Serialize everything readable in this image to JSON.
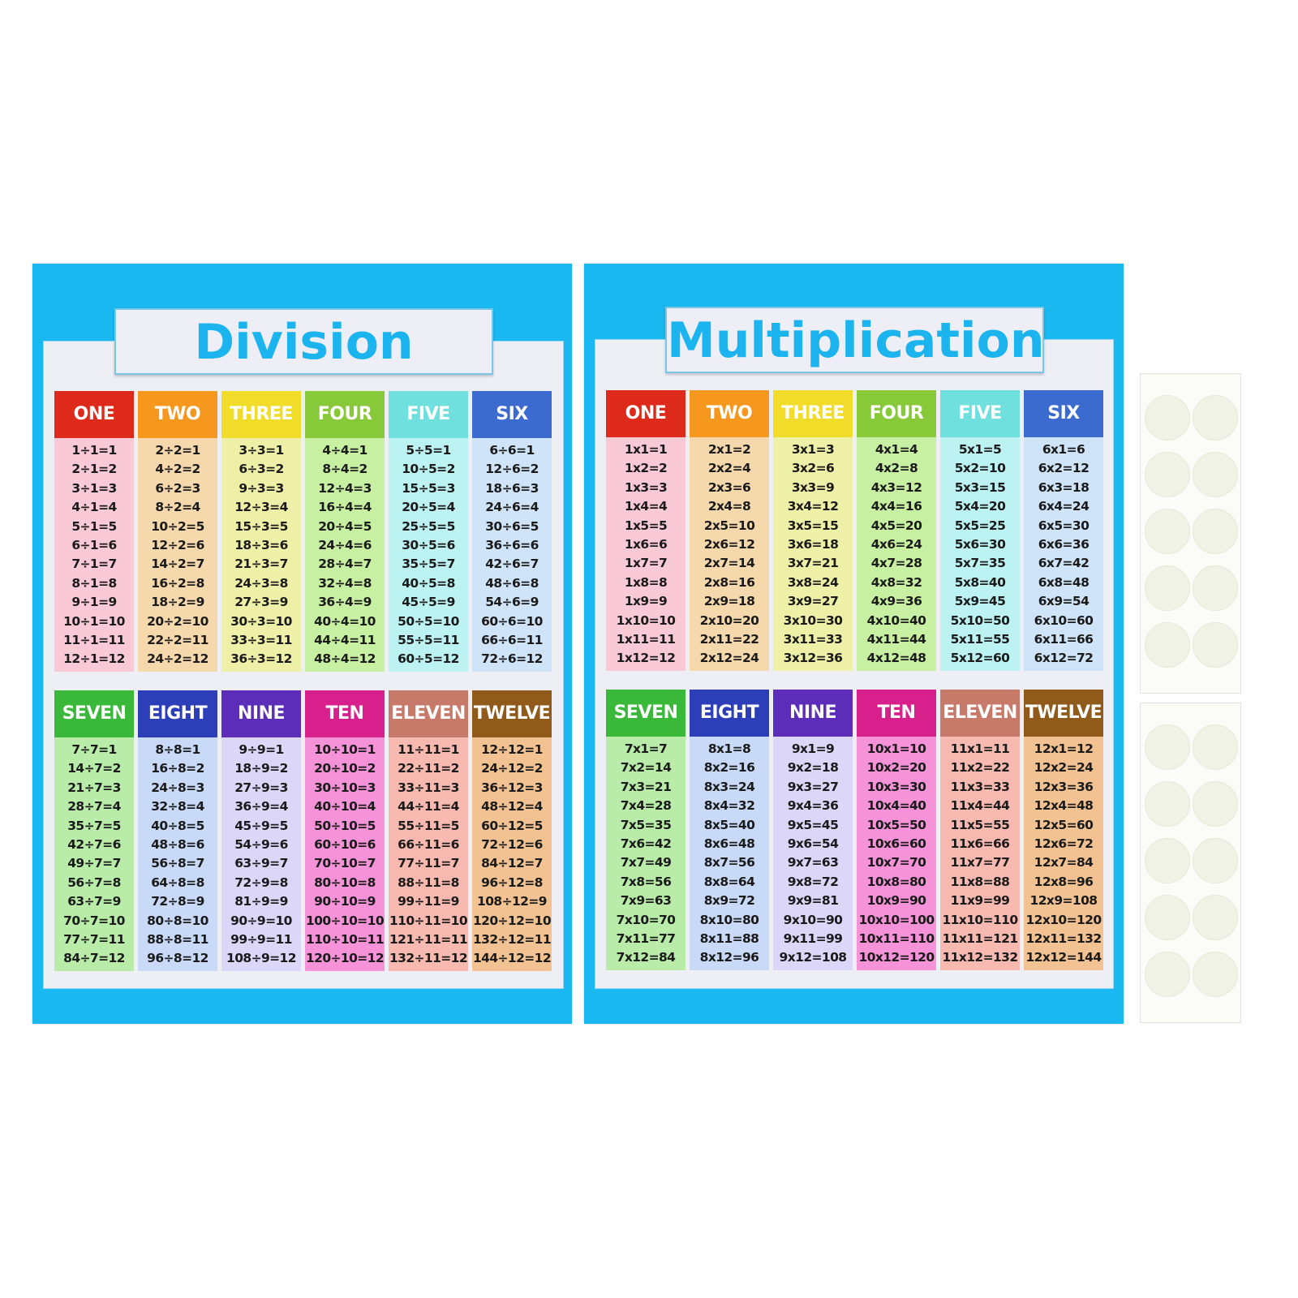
{
  "division": {
    "title": "Division",
    "columns": [
      {
        "label": "ONE",
        "head_color": "#dd2a1a",
        "body_color": "#f9c9d6",
        "eqs": [
          "1÷1=1",
          "2÷1=2",
          "3÷1=3",
          "4÷1=4",
          "5÷1=5",
          "6÷1=6",
          "7÷1=7",
          "8÷1=8",
          "9÷1=9",
          "10÷1=10",
          "11÷1=11",
          "12÷1=12"
        ]
      },
      {
        "label": "TWO",
        "head_color": "#f7981e",
        "body_color": "#f5d8ac",
        "eqs": [
          "2÷2=1",
          "4÷2=2",
          "6÷2=3",
          "8÷2=4",
          "10÷2=5",
          "12÷2=6",
          "14÷2=7",
          "16÷2=8",
          "18÷2=9",
          "20÷2=10",
          "22÷2=11",
          "24÷2=12"
        ]
      },
      {
        "label": "THREE",
        "head_color": "#f2dc2a",
        "body_color": "#eef0a8",
        "eqs": [
          "3÷3=1",
          "6÷3=2",
          "9÷3=3",
          "12÷3=4",
          "15÷3=5",
          "18÷3=6",
          "21÷3=7",
          "24÷3=8",
          "27÷3=9",
          "30÷3=10",
          "33÷3=11",
          "36÷3=12"
        ]
      },
      {
        "label": "FOUR",
        "head_color": "#88c93a",
        "body_color": "#c8f0a2",
        "eqs": [
          "4÷4=1",
          "8÷4=2",
          "12÷4=3",
          "16÷4=4",
          "20÷4=5",
          "24÷4=6",
          "28÷4=7",
          "32÷4=8",
          "36÷4=9",
          "40÷4=10",
          "44÷4=11",
          "48÷4=12"
        ]
      },
      {
        "label": "FIVE",
        "head_color": "#6fe0de",
        "body_color": "#bdf2f2",
        "eqs": [
          "5÷5=1",
          "10÷5=2",
          "15÷5=3",
          "20÷5=4",
          "25÷5=5",
          "30÷5=6",
          "35÷5=7",
          "40÷5=8",
          "45÷5=9",
          "50÷5=10",
          "55÷5=11",
          "60÷5=12"
        ]
      },
      {
        "label": "SIX",
        "head_color": "#3c6bd0",
        "body_color": "#cfe4f8",
        "eqs": [
          "6÷6=1",
          "12÷6=2",
          "18÷6=3",
          "24÷6=4",
          "30÷6=5",
          "36÷6=6",
          "42÷6=7",
          "48÷6=8",
          "54÷6=9",
          "60÷6=10",
          "66÷6=11",
          "72÷6=12"
        ]
      },
      {
        "label": "SEVEN",
        "head_color": "#3ab83a",
        "body_color": "#b8eca8",
        "eqs": [
          "7÷7=1",
          "14÷7=2",
          "21÷7=3",
          "28÷7=4",
          "35÷7=5",
          "42÷7=6",
          "49÷7=7",
          "56÷7=8",
          "63÷7=9",
          "70÷7=10",
          "77÷7=11",
          "84÷7=12"
        ]
      },
      {
        "label": "EIGHT",
        "head_color": "#2c3eb8",
        "body_color": "#c8daf8",
        "eqs": [
          "8÷8=1",
          "16÷8=2",
          "24÷8=3",
          "32÷8=4",
          "40÷8=5",
          "48÷8=6",
          "56÷8=7",
          "64÷8=8",
          "72÷8=9",
          "80÷8=10",
          "88÷8=11",
          "96÷8=12"
        ]
      },
      {
        "label": "NINE",
        "head_color": "#5b2db8",
        "body_color": "#dcd6f8",
        "eqs": [
          "9÷9=1",
          "18÷9=2",
          "27÷9=3",
          "36÷9=4",
          "45÷9=5",
          "54÷9=6",
          "63÷9=7",
          "72÷9=8",
          "81÷9=9",
          "90÷9=10",
          "99÷9=11",
          "108÷9=12"
        ]
      },
      {
        "label": "TEN",
        "head_color": "#d8208c",
        "body_color": "#f592d8",
        "eqs": [
          "10÷10=1",
          "20÷10=2",
          "30÷10=3",
          "40÷10=4",
          "50÷10=5",
          "60÷10=6",
          "70÷10=7",
          "80÷10=8",
          "90÷10=9",
          "100÷10=10",
          "110÷10=11",
          "120÷10=12"
        ]
      },
      {
        "label": "ELEVEN",
        "head_color": "#c87a6a",
        "body_color": "#f8bab0",
        "eqs": [
          "11÷11=1",
          "22÷11=2",
          "33÷11=3",
          "44÷11=4",
          "55÷11=5",
          "66÷11=6",
          "77÷11=7",
          "88÷11=8",
          "99÷11=9",
          "110÷11=10",
          "121÷11=11",
          "132÷11=12"
        ]
      },
      {
        "label": "TWELVE",
        "head_color": "#8f5a1a",
        "body_color": "#f2c292",
        "eqs": [
          "12÷12=1",
          "24÷12=2",
          "36÷12=3",
          "48÷12=4",
          "60÷12=5",
          "72÷12=6",
          "84÷12=7",
          "96÷12=8",
          "108÷12=9",
          "120÷12=10",
          "132÷12=11",
          "144÷12=12"
        ]
      }
    ]
  },
  "multiplication": {
    "title": "Multiplication",
    "columns": [
      {
        "label": "ONE",
        "head_color": "#dd2a1a",
        "body_color": "#f9c9d6",
        "eqs": [
          "1x1=1",
          "1x2=2",
          "1x3=3",
          "1x4=4",
          "1x5=5",
          "1x6=6",
          "1x7=7",
          "1x8=8",
          "1x9=9",
          "1x10=10",
          "1x11=11",
          "1x12=12"
        ]
      },
      {
        "label": "TWO",
        "head_color": "#f7981e",
        "body_color": "#f5d8ac",
        "eqs": [
          "2x1=2",
          "2x2=4",
          "2x3=6",
          "2x4=8",
          "2x5=10",
          "2x6=12",
          "2x7=14",
          "2x8=16",
          "2x9=18",
          "2x10=20",
          "2x11=22",
          "2x12=24"
        ]
      },
      {
        "label": "THREE",
        "head_color": "#f2dc2a",
        "body_color": "#eef0a8",
        "eqs": [
          "3x1=3",
          "3x2=6",
          "3x3=9",
          "3x4=12",
          "3x5=15",
          "3x6=18",
          "3x7=21",
          "3x8=24",
          "3x9=27",
          "3x10=30",
          "3x11=33",
          "3x12=36"
        ]
      },
      {
        "label": "FOUR",
        "head_color": "#88c93a",
        "body_color": "#c8f0a2",
        "eqs": [
          "4x1=4",
          "4x2=8",
          "4x3=12",
          "4x4=16",
          "4x5=20",
          "4x6=24",
          "4x7=28",
          "4x8=32",
          "4x9=36",
          "4x10=40",
          "4x11=44",
          "4x12=48"
        ]
      },
      {
        "label": "FIVE",
        "head_color": "#6fe0de",
        "body_color": "#bdf2f2",
        "eqs": [
          "5x1=5",
          "5x2=10",
          "5x3=15",
          "5x4=20",
          "5x5=25",
          "5x6=30",
          "5x7=35",
          "5x8=40",
          "5x9=45",
          "5x10=50",
          "5x11=55",
          "5x12=60"
        ]
      },
      {
        "label": "SIX",
        "head_color": "#3c6bd0",
        "body_color": "#cfe4f8",
        "eqs": [
          "6x1=6",
          "6x2=12",
          "6x3=18",
          "6x4=24",
          "6x5=30",
          "6x6=36",
          "6x7=42",
          "6x8=48",
          "6x9=54",
          "6x10=60",
          "6x11=66",
          "6x12=72"
        ]
      },
      {
        "label": "SEVEN",
        "head_color": "#3ab83a",
        "body_color": "#b8eca8",
        "eqs": [
          "7x1=7",
          "7x2=14",
          "7x3=21",
          "7x4=28",
          "7x5=35",
          "7x6=42",
          "7x7=49",
          "7x8=56",
          "7x9=63",
          "7x10=70",
          "7x11=77",
          "7x12=84"
        ]
      },
      {
        "label": "EIGHT",
        "head_color": "#2c3eb8",
        "body_color": "#c8daf8",
        "eqs": [
          "8x1=8",
          "8x2=16",
          "8x3=24",
          "8x4=32",
          "8x5=40",
          "8x6=48",
          "8x7=56",
          "8x8=64",
          "8x9=72",
          "8x10=80",
          "8x11=88",
          "8x12=96"
        ]
      },
      {
        "label": "NINE",
        "head_color": "#5b2db8",
        "body_color": "#dcd6f8",
        "eqs": [
          "9x1=9",
          "9x2=18",
          "9x3=27",
          "9x4=36",
          "9x5=45",
          "9x6=54",
          "9x7=63",
          "9x8=72",
          "9x9=81",
          "9x10=90",
          "9x11=99",
          "9x12=108"
        ]
      },
      {
        "label": "TEN",
        "head_color": "#d8208c",
        "body_color": "#f592d8",
        "eqs": [
          "10x1=10",
          "10x2=20",
          "10x3=30",
          "10x4=40",
          "10x5=50",
          "10x6=60",
          "10x7=70",
          "10x8=80",
          "10x9=90",
          "10x10=100",
          "10x11=110",
          "10x12=120"
        ]
      },
      {
        "label": "ELEVEN",
        "head_color": "#c87a6a",
        "body_color": "#f8bab0",
        "eqs": [
          "11x1=11",
          "11x2=22",
          "11x3=33",
          "11x4=44",
          "11x5=55",
          "11x6=66",
          "11x7=77",
          "11x8=88",
          "11x9=99",
          "11x10=110",
          "11x11=121",
          "11x12=132"
        ]
      },
      {
        "label": "TWELVE",
        "head_color": "#8f5a1a",
        "body_color": "#f2c292",
        "eqs": [
          "12x1=12",
          "12x2=24",
          "12x3=36",
          "12x4=48",
          "12x5=60",
          "12x6=72",
          "12x7=84",
          "12x8=96",
          "12x9=108",
          "12x10=120",
          "12x11=132",
          "12x12=144"
        ]
      }
    ]
  },
  "colors": {
    "poster_border": "#1ab8f0",
    "title_text": "#1cb4ee"
  }
}
